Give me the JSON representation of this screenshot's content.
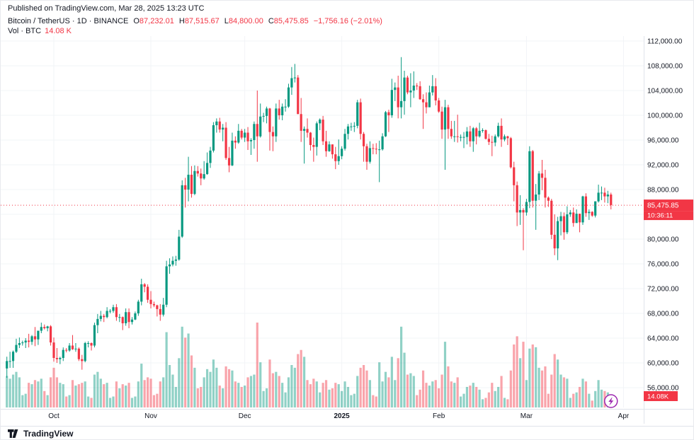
{
  "published_line": "Published on TradingView.com, Mar 28, 2025 13:23 UTC",
  "legend": {
    "market_line": "Bitcoin / TetherUS · 1D · BINANCE",
    "ohlc": {
      "o_key": "O",
      "o_val": "87,232.01",
      "h_key": "H",
      "h_val": "87,515.67",
      "l_key": "L",
      "l_val": "84,800.00",
      "c_key": "C",
      "c_val": "85,475.85",
      "change": "−1,756.16 (−2.01%)"
    },
    "vol_line": "Vol · BTC",
    "vol_value": "14.08 K"
  },
  "price_label": {
    "value": 85475.85,
    "text": "85,475.85",
    "countdown": "10:36:11"
  },
  "volume_badge": {
    "text": "14.08K"
  },
  "footer": {
    "brand": "TradingView"
  },
  "colors": {
    "up": "#089981",
    "down": "#f23645",
    "volume_up": "rgba(8,153,129,0.45)",
    "volume_down": "rgba(242,54,69,0.45)",
    "accent": "#f23645",
    "axis_text": "#131722",
    "grid": "#f2f4f7",
    "border": "#e0e3eb",
    "flash": "#9c27b0"
  },
  "chart_data": {
    "type": "candlestick",
    "title": "Bitcoin / TetherUS · 1D · BINANCE",
    "symbol": "Bitcoin / TetherUS",
    "exchange": "BINANCE",
    "interval": "1D",
    "price_unit": "USDT (candle values stored in thousands)",
    "volume_unit": "K BTC",
    "start_date": "2024-09-16",
    "last_close": 85475.85,
    "y_ticks": [
      112000,
      108000,
      104000,
      100000,
      96000,
      92000,
      88000,
      84000,
      80000,
      76000,
      72000,
      68000,
      64000,
      60000,
      56000
    ],
    "y_tick_labels": [
      "112,000.00",
      "108,000.00",
      "104,000.00",
      "100,000.00",
      "96,000.00",
      "92,000.00",
      "88,000.00",
      "84,000.00",
      "80,000.00",
      "76,000.00",
      "72,000.00",
      "68,000.00",
      "64,000.00",
      "60,000.00",
      "56,000.00"
    ],
    "x_ticks": [
      {
        "label": "Oct",
        "index": 15
      },
      {
        "label": "Nov",
        "index": 46
      },
      {
        "label": "Dec",
        "index": 76
      },
      {
        "label": "2025",
        "index": 107,
        "bold": true
      },
      {
        "label": "Feb",
        "index": 138
      },
      {
        "label": "Mar",
        "index": 166
      },
      {
        "label": "Apr",
        "index": 197
      }
    ],
    "candles": [
      [
        59.1,
        61,
        57.6,
        60.3,
        46
      ],
      [
        60.3,
        61.8,
        59.2,
        60.3,
        42
      ],
      [
        60.3,
        62,
        59.2,
        61.8,
        48
      ],
      [
        61.8,
        63.9,
        61.6,
        62.9,
        52
      ],
      [
        62.9,
        64.1,
        62.4,
        63.2,
        44
      ],
      [
        63.2,
        63.6,
        62.8,
        63.3,
        18
      ],
      [
        63.3,
        64,
        62.4,
        63.6,
        20
      ],
      [
        63.6,
        64.7,
        62.5,
        63.4,
        36
      ],
      [
        63.4,
        64.5,
        62.9,
        64.3,
        34
      ],
      [
        64.3,
        65.8,
        62.7,
        63.8,
        40
      ],
      [
        63.8,
        65.2,
        62.9,
        65.2,
        38
      ],
      [
        65.2,
        66.5,
        64.8,
        65.8,
        42
      ],
      [
        65.8,
        66.2,
        65.4,
        65.6,
        24
      ],
      [
        65.6,
        66,
        65.1,
        65.9,
        18
      ],
      [
        65.9,
        66.1,
        62.8,
        63.3,
        44
      ],
      [
        63.3,
        64.1,
        60.2,
        60.8,
        58
      ],
      [
        60.8,
        62.4,
        60,
        60.6,
        44
      ],
      [
        60.6,
        61,
        59.8,
        60.8,
        36
      ],
      [
        60.8,
        62.5,
        60.3,
        62.1,
        34
      ],
      [
        62.1,
        62.4,
        61.7,
        62,
        16
      ],
      [
        62,
        63.2,
        61.8,
        62.8,
        18
      ],
      [
        62.8,
        64.5,
        62.1,
        62.2,
        40
      ],
      [
        62.2,
        63.2,
        61.8,
        62.3,
        32
      ],
      [
        62.3,
        62.5,
        60.3,
        60.6,
        34
      ],
      [
        60.6,
        61.3,
        58.9,
        60.3,
        36
      ],
      [
        60.3,
        63.4,
        60.1,
        63.2,
        38
      ],
      [
        63.2,
        63.5,
        62.5,
        63.2,
        16
      ],
      [
        63.2,
        63.3,
        62,
        62.8,
        14
      ],
      [
        62.8,
        66.5,
        62.5,
        66.1,
        48
      ],
      [
        66.1,
        67.9,
        64.8,
        67.1,
        52
      ],
      [
        67.1,
        68.4,
        66.7,
        67.6,
        42
      ],
      [
        67.6,
        67.9,
        66.6,
        67.4,
        34
      ],
      [
        67.4,
        69,
        67.2,
        68.4,
        36
      ],
      [
        68.4,
        68.7,
        68,
        68.4,
        14
      ],
      [
        68.4,
        69.4,
        68.1,
        69,
        16
      ],
      [
        69,
        69.5,
        66.8,
        67.4,
        38
      ],
      [
        67.4,
        67.9,
        66.6,
        67.4,
        28
      ],
      [
        67.4,
        67.5,
        65.3,
        66.4,
        34
      ],
      [
        66.4,
        68.8,
        66,
        68.2,
        32
      ],
      [
        68.2,
        68.8,
        65.6,
        66.6,
        36
      ],
      [
        66.6,
        67.4,
        66.2,
        67,
        14
      ],
      [
        67,
        68.3,
        66.9,
        68,
        16
      ],
      [
        68,
        70.2,
        67.6,
        69.9,
        38
      ],
      [
        69.9,
        73.6,
        69.3,
        72.7,
        64
      ],
      [
        72.7,
        72.9,
        71.4,
        72.3,
        40
      ],
      [
        72.3,
        72.7,
        69.7,
        70.2,
        44
      ],
      [
        70.2,
        71.6,
        68.8,
        69.5,
        42
      ],
      [
        69.5,
        69.9,
        69,
        69.3,
        18
      ],
      [
        69.3,
        69.4,
        67.5,
        68.7,
        20
      ],
      [
        68.7,
        69.5,
        66.8,
        67.8,
        38
      ],
      [
        67.8,
        70.5,
        67.5,
        69.4,
        44
      ],
      [
        69.4,
        76.5,
        69,
        75.6,
        110
      ],
      [
        75.6,
        76.9,
        74.4,
        75.9,
        62
      ],
      [
        75.9,
        77.2,
        75.6,
        76.5,
        48
      ],
      [
        76.5,
        77.3,
        75.7,
        76.7,
        30
      ],
      [
        76.7,
        81.5,
        76.5,
        80.4,
        72
      ],
      [
        80.4,
        89.5,
        80.2,
        88.7,
        118
      ],
      [
        88.7,
        89.9,
        85.1,
        88,
        102
      ],
      [
        88,
        93.3,
        86.1,
        90.4,
        108
      ],
      [
        90.4,
        91.8,
        86.7,
        87.3,
        76
      ],
      [
        87.3,
        91.9,
        87.1,
        91,
        58
      ],
      [
        91,
        91.8,
        90.1,
        90.6,
        28
      ],
      [
        90.6,
        91.4,
        88.7,
        89.8,
        30
      ],
      [
        89.8,
        92.6,
        89.6,
        90.5,
        44
      ],
      [
        90.5,
        94,
        90.4,
        92.3,
        56
      ],
      [
        92.3,
        94.9,
        91.5,
        94.3,
        52
      ],
      [
        94.3,
        98.9,
        94,
        98.4,
        70
      ],
      [
        98.4,
        99.5,
        97.2,
        99,
        58
      ],
      [
        99,
        99.6,
        97.2,
        97.7,
        32
      ],
      [
        97.7,
        98.6,
        95.8,
        98,
        28
      ],
      [
        98,
        98.9,
        92.8,
        93.1,
        60
      ],
      [
        93.1,
        94.9,
        90.8,
        91.9,
        56
      ],
      [
        91.9,
        97.2,
        91.8,
        95.9,
        54
      ],
      [
        95.9,
        96.6,
        94.6,
        95.6,
        38
      ],
      [
        95.6,
        98.6,
        95.4,
        97.5,
        36
      ],
      [
        97.5,
        97.8,
        96.1,
        96.4,
        30
      ],
      [
        96.4,
        97.8,
        95.7,
        97.2,
        32
      ],
      [
        97.2,
        98.1,
        94.4,
        95.8,
        44
      ],
      [
        95.8,
        96.3,
        93.6,
        96,
        46
      ],
      [
        96,
        99,
        94.6,
        98.6,
        48
      ],
      [
        98.6,
        104,
        92.5,
        96.6,
        124
      ],
      [
        96.6,
        101.9,
        96.4,
        99.8,
        66
      ],
      [
        99.8,
        100.4,
        98.9,
        99.9,
        24
      ],
      [
        99.9,
        101.4,
        98.7,
        101.1,
        28
      ],
      [
        101.1,
        101.2,
        94.3,
        97.3,
        70
      ],
      [
        97.3,
        98.2,
        94.2,
        96.6,
        50
      ],
      [
        96.6,
        101.9,
        95.7,
        101.1,
        52
      ],
      [
        101.1,
        102.5,
        99.3,
        100,
        46
      ],
      [
        100,
        101.9,
        99.2,
        101.4,
        36
      ],
      [
        101.4,
        102.6,
        100.6,
        101.4,
        22
      ],
      [
        101.4,
        105.1,
        101.2,
        104.5,
        44
      ],
      [
        104.5,
        107.8,
        103.3,
        106,
        62
      ],
      [
        106,
        108.3,
        105.3,
        106.1,
        58
      ],
      [
        106.1,
        106.5,
        100.2,
        100.2,
        78
      ],
      [
        100.2,
        102.8,
        95.7,
        97.5,
        84
      ],
      [
        97.5,
        98.2,
        92.2,
        97.8,
        74
      ],
      [
        97.8,
        99.5,
        96.4,
        97.2,
        40
      ],
      [
        97.2,
        97.3,
        94.3,
        95.2,
        34
      ],
      [
        95.2,
        96.4,
        92.5,
        94.9,
        42
      ],
      [
        94.9,
        99,
        93.5,
        98.7,
        38
      ],
      [
        98.7,
        99.5,
        97.6,
        99.3,
        22
      ],
      [
        99.3,
        99.9,
        95.2,
        95.8,
        36
      ],
      [
        95.8,
        97.5,
        93.3,
        94.2,
        40
      ],
      [
        94.2,
        95.8,
        94.1,
        95.3,
        26
      ],
      [
        95.3,
        95.3,
        93,
        93.7,
        28
      ],
      [
        93.7,
        94.9,
        91.3,
        92.6,
        36
      ],
      [
        92.6,
        96.1,
        92,
        93.4,
        34
      ],
      [
        93.4,
        95,
        92.9,
        94.6,
        24
      ],
      [
        94.6,
        97.8,
        94.3,
        97,
        38
      ],
      [
        97,
        98.6,
        96.1,
        98.2,
        30
      ],
      [
        98.2,
        98.8,
        97.5,
        98.2,
        18
      ],
      [
        98.2,
        98.9,
        97.3,
        98.3,
        20
      ],
      [
        98.3,
        102.5,
        97.9,
        102.1,
        46
      ],
      [
        102.1,
        102.7,
        96.1,
        97,
        58
      ],
      [
        97,
        97.3,
        92.5,
        95,
        62
      ],
      [
        95,
        95.4,
        91.2,
        92.5,
        54
      ],
      [
        92.5,
        95.8,
        92.2,
        94.7,
        40
      ],
      [
        94.7,
        95.4,
        93.7,
        94.6,
        18
      ],
      [
        94.6,
        95.5,
        93.7,
        94.5,
        16
      ],
      [
        94.5,
        95.9,
        89.2,
        94.5,
        66
      ],
      [
        94.5,
        97.1,
        94.3,
        96.6,
        38
      ],
      [
        96.6,
        100.7,
        96.5,
        100.5,
        52
      ],
      [
        100.5,
        100.9,
        97.3,
        100,
        44
      ],
      [
        100,
        105.9,
        99.6,
        104.1,
        74
      ],
      [
        104.1,
        105.3,
        102.3,
        104.5,
        40
      ],
      [
        104.5,
        106.4,
        99.5,
        101.3,
        72
      ],
      [
        101.3,
        109.4,
        99.5,
        102.3,
        118
      ],
      [
        102.3,
        107.2,
        100.1,
        106.1,
        80
      ],
      [
        106.1,
        106.4,
        103.4,
        103.7,
        48
      ],
      [
        103.7,
        106.8,
        101.3,
        104,
        50
      ],
      [
        104,
        107.1,
        102.8,
        104.8,
        46
      ],
      [
        104.8,
        105.2,
        104.1,
        104.7,
        18
      ],
      [
        104.7,
        105.5,
        102.5,
        102.6,
        26
      ],
      [
        102.6,
        103.4,
        97.8,
        102.1,
        54
      ],
      [
        102.1,
        103.7,
        100.3,
        101.3,
        36
      ],
      [
        101.3,
        104.8,
        101.3,
        103.7,
        32
      ],
      [
        103.7,
        106.5,
        103.2,
        104.7,
        38
      ],
      [
        104.7,
        106,
        101.6,
        102.4,
        40
      ],
      [
        102.4,
        102.8,
        100.4,
        100.6,
        28
      ],
      [
        100.6,
        101.4,
        96.2,
        97.7,
        48
      ],
      [
        97.7,
        102.5,
        91.2,
        101.3,
        96
      ],
      [
        101.3,
        101.7,
        96.2,
        97.8,
        60
      ],
      [
        97.8,
        99.1,
        96.2,
        96.6,
        38
      ],
      [
        96.6,
        99.1,
        95.7,
        96.6,
        36
      ],
      [
        96.6,
        100.1,
        95.6,
        96.5,
        44
      ],
      [
        96.5,
        96.9,
        95.8,
        96.5,
        16
      ],
      [
        96.5,
        97.3,
        94.7,
        96.5,
        20
      ],
      [
        96.5,
        98.1,
        95.3,
        97.4,
        30
      ],
      [
        97.4,
        98.3,
        94.9,
        95.8,
        32
      ],
      [
        95.8,
        98.1,
        94.1,
        97.9,
        36
      ],
      [
        97.9,
        98.1,
        95.3,
        96.6,
        30
      ],
      [
        96.6,
        98.8,
        96.4,
        97.5,
        26
      ],
      [
        97.5,
        97.9,
        97.2,
        97.6,
        12
      ],
      [
        97.6,
        97.7,
        96.1,
        96.2,
        14
      ],
      [
        96.2,
        97,
        95.2,
        95.7,
        22
      ],
      [
        95.7,
        96.7,
        93.4,
        95.6,
        36
      ],
      [
        95.6,
        96.9,
        95,
        96.6,
        24
      ],
      [
        96.6,
        98.8,
        96.4,
        98.3,
        30
      ],
      [
        98.3,
        99.5,
        94.9,
        96.1,
        46
      ],
      [
        96.1,
        96.9,
        95.8,
        96.6,
        14
      ],
      [
        96.6,
        96.7,
        95.2,
        96.3,
        12
      ],
      [
        96.3,
        96.5,
        91.4,
        91.6,
        54
      ],
      [
        91.6,
        92.5,
        86.1,
        88.7,
        92
      ],
      [
        88.7,
        89.3,
        82.1,
        84.3,
        104
      ],
      [
        84.3,
        87.1,
        82.3,
        84.7,
        72
      ],
      [
        84.7,
        85,
        78.2,
        84.3,
        96
      ],
      [
        84.3,
        86.5,
        83.8,
        86,
        40
      ],
      [
        86,
        95,
        85,
        94.2,
        86
      ],
      [
        94.2,
        94.4,
        85.1,
        86.2,
        92
      ],
      [
        86.2,
        88.9,
        81.5,
        87.2,
        88
      ],
      [
        87.2,
        91,
        86.3,
        90.6,
        58
      ],
      [
        90.6,
        92.8,
        87.9,
        89.9,
        54
      ],
      [
        89.9,
        91.2,
        85.1,
        86.7,
        60
      ],
      [
        86.7,
        86.9,
        85.2,
        86.2,
        20
      ],
      [
        86.2,
        86.5,
        80,
        80.7,
        48
      ],
      [
        80.7,
        84,
        77.4,
        78.5,
        78
      ],
      [
        78.5,
        83.6,
        76.6,
        82.9,
        70
      ],
      [
        82.9,
        84.4,
        80.6,
        83.7,
        48
      ],
      [
        83.7,
        84.3,
        79.9,
        81.1,
        44
      ],
      [
        81.1,
        85.3,
        80.8,
        84,
        42
      ],
      [
        84,
        84.7,
        83.6,
        84.3,
        14
      ],
      [
        84.3,
        85.1,
        82,
        82.6,
        20
      ],
      [
        82.6,
        84.8,
        82.6,
        84.1,
        22
      ],
      [
        84.1,
        84.1,
        81.1,
        82.7,
        30
      ],
      [
        82.7,
        87,
        82.3,
        86.9,
        42
      ],
      [
        86.9,
        87.4,
        83.6,
        84.2,
        38
      ],
      [
        84.2,
        84.8,
        83.1,
        84.4,
        20
      ],
      [
        84.4,
        84.5,
        83.6,
        83.8,
        10
      ],
      [
        83.8,
        86.1,
        83.5,
        86.1,
        24
      ],
      [
        86.1,
        88.8,
        85.9,
        87.5,
        40
      ],
      [
        87.5,
        88.5,
        86.3,
        87.5,
        26
      ],
      [
        87.5,
        88.3,
        85.9,
        86.9,
        24
      ],
      [
        86.9,
        87.8,
        85.8,
        87.2,
        22
      ],
      [
        87.2,
        87.5,
        84.8,
        85.5,
        14.08
      ]
    ]
  }
}
